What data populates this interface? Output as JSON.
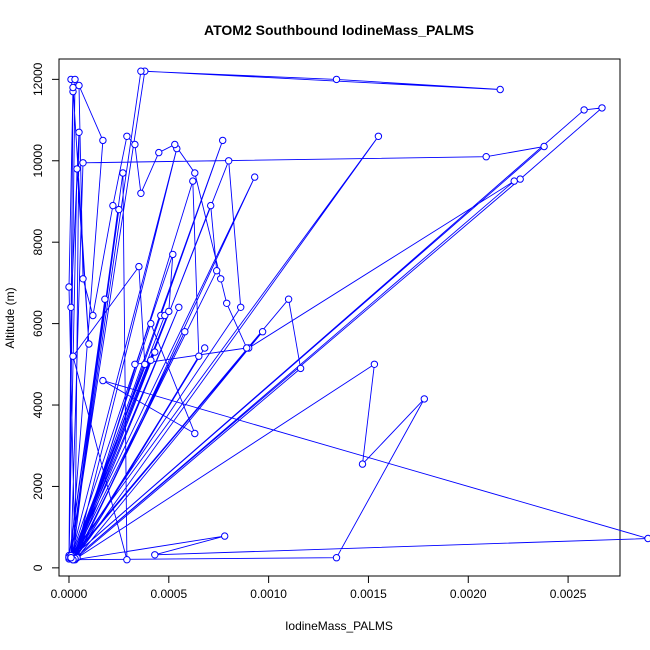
{
  "chart_data": {
    "type": "line",
    "title": "ATOM2 Southbound IodineMass_PALMS",
    "xlabel": "IodineMass_PALMS",
    "ylabel": "Altitude (m)",
    "xlim": [
      -5e-05,
      0.00276
    ],
    "ylim": [
      -200,
      12500
    ],
    "x_ticks": [
      0,
      0.0005,
      0.001,
      0.0015,
      0.002,
      0.0025
    ],
    "x_tick_labels": [
      "0.0000",
      "0.0005",
      "0.0010",
      "0.0015",
      "0.0020",
      "0.0025"
    ],
    "y_ticks": [
      0,
      2000,
      4000,
      6000,
      8000,
      10000,
      12000
    ],
    "y_tick_labels": [
      "0",
      "2000",
      "4000",
      "6000",
      "8000",
      "10000",
      "12000"
    ],
    "grid": false,
    "legend": "none",
    "series": [
      {
        "color": "#0000ff",
        "marker": "open-circle",
        "x": [
          0,
          2e-05,
          1e-05,
          3e-05,
          0,
          1e-05,
          5e-05,
          3e-05,
          0,
          2e-05,
          0.0001,
          4e-05,
          0,
          2e-05,
          0.00018,
          0,
          0.00025,
          1e-05,
          0.00027,
          0.00029,
          2e-05,
          0.00035,
          0.00038,
          2e-05,
          0.00041,
          0.00043,
          3e-05,
          0.00046,
          0.00048,
          1e-05,
          0.0005,
          0.00052,
          1e-05,
          0.00054,
          3e-05,
          0.00055,
          2e-05,
          0.00058,
          4e-05,
          0.00062,
          0.00065,
          3e-05,
          0.00068,
          2e-05,
          0.00071,
          0.00074,
          3e-05,
          0.00077,
          2e-05,
          0.0008,
          0.00086,
          1e-05,
          0.00093,
          4e-05,
          0.00097,
          2e-05,
          2e-05,
          0.0011,
          0.00116,
          3e-05,
          0.00153,
          0.00147,
          0.00178,
          0.00134,
          3e-05,
          0.00078,
          0.00043,
          0.0029,
          0.00017,
          0.00063,
          0.00041,
          3e-05,
          0.00155,
          1e-05,
          0.00038,
          0.00216,
          0.00134,
          0.00036,
          1e-05,
          7e-05,
          0.00209,
          0.00238,
          1e-05,
          0.00258,
          0.00267,
          0.00226,
          2e-05,
          0.00223,
          0.0009,
          1e-05,
          0.00017,
          5e-05,
          7e-05,
          0.00012,
          0.00022,
          0.00029,
          0.00033,
          0.00036,
          0.00045,
          0.00053,
          0.00063,
          0.00076,
          0.00079,
          0.00089,
          0.00033
        ],
        "y": [
          250,
          11700,
          12000,
          12000,
          300,
          6400,
          10700,
          250,
          6900,
          11800,
          5500,
          9800,
          220,
          300,
          6600,
          260,
          8800,
          280,
          9700,
          200,
          5200,
          7400,
          5000,
          230,
          5100,
          5300,
          250,
          6200,
          6200,
          240,
          6300,
          7700,
          270,
          10300,
          230,
          6400,
          240,
          5800,
          270,
          9500,
          5200,
          210,
          5400,
          200,
          8900,
          7300,
          240,
          10500,
          260,
          10000,
          6400,
          230,
          9600,
          250,
          5800,
          270,
          270,
          6600,
          4900,
          210,
          5000,
          2550,
          4150,
          250,
          200,
          780,
          320,
          720,
          4600,
          3300,
          6000,
          230,
          10600,
          300,
          12200,
          11750,
          12000,
          12200,
          250,
          9950,
          10100,
          10350,
          240,
          11250,
          11300,
          9550,
          200,
          9500,
          5400,
          250,
          10500,
          11850,
          7100,
          6200,
          8900,
          10600,
          10400,
          9200,
          10200,
          10400,
          9700,
          7100,
          6500,
          5400,
          5000
        ]
      }
    ]
  }
}
